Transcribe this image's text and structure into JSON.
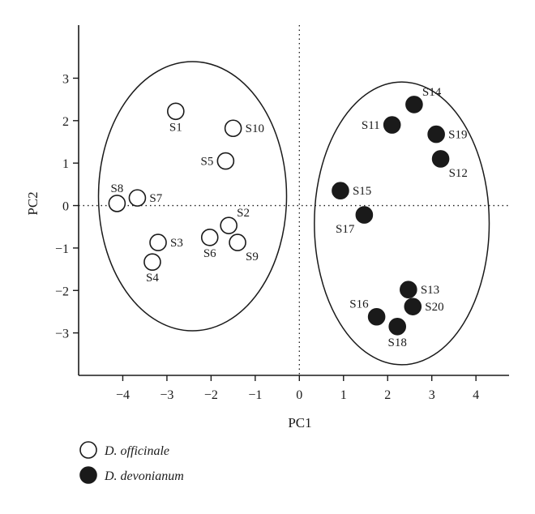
{
  "chart_data": {
    "type": "scatter",
    "xlabel": "PC1",
    "ylabel": "PC2",
    "xlim": [
      -5,
      4.75
    ],
    "ylim": [
      -4,
      4.25
    ],
    "xticks": [
      -4,
      -3,
      -2,
      -1,
      0,
      1,
      2,
      3,
      4
    ],
    "xtick_labels": [
      "−4",
      "−3",
      "−2",
      "−1",
      "0",
      "1",
      "2",
      "3",
      "4"
    ],
    "yticks": [
      -3,
      -2,
      -1,
      0,
      1,
      2,
      3
    ],
    "ytick_labels": [
      "−3",
      "−2",
      "−1",
      "0",
      "1",
      "2",
      "3"
    ],
    "grid": false,
    "zero_lines": "dotted",
    "legend_position": "bottom-left",
    "series": [
      {
        "name": "D. officinale",
        "marker": "open-circle",
        "color": "#1a1a1a",
        "points": [
          {
            "label": "S1",
            "x": -2.8,
            "y": 2.22,
            "label_pos": "below"
          },
          {
            "label": "S2",
            "x": -1.6,
            "y": -0.47,
            "label_pos": "above-right"
          },
          {
            "label": "S3",
            "x": -3.2,
            "y": -0.87,
            "label_pos": "right"
          },
          {
            "label": "S4",
            "x": -3.33,
            "y": -1.33,
            "label_pos": "below"
          },
          {
            "label": "S5",
            "x": -1.67,
            "y": 1.05,
            "label_pos": "left"
          },
          {
            "label": "S6",
            "x": -2.03,
            "y": -0.75,
            "label_pos": "below"
          },
          {
            "label": "S7",
            "x": -3.67,
            "y": 0.18,
            "label_pos": "right"
          },
          {
            "label": "S8",
            "x": -4.13,
            "y": 0.05,
            "label_pos": "above"
          },
          {
            "label": "S9",
            "x": -1.4,
            "y": -0.87,
            "label_pos": "below-right"
          },
          {
            "label": "S10",
            "x": -1.5,
            "y": 1.82,
            "label_pos": "right"
          }
        ]
      },
      {
        "name": "D. devonianum",
        "marker": "filled-circle",
        "color": "#1a1a1a",
        "points": [
          {
            "label": "S11",
            "x": 2.1,
            "y": 1.9,
            "label_pos": "left"
          },
          {
            "label": "S12",
            "x": 3.2,
            "y": 1.1,
            "label_pos": "below-right"
          },
          {
            "label": "S13",
            "x": 2.47,
            "y": -1.98,
            "label_pos": "right"
          },
          {
            "label": "S14",
            "x": 2.6,
            "y": 2.38,
            "label_pos": "above-right"
          },
          {
            "label": "S15",
            "x": 0.93,
            "y": 0.35,
            "label_pos": "right"
          },
          {
            "label": "S16",
            "x": 1.75,
            "y": -2.62,
            "label_pos": "above-left"
          },
          {
            "label": "S17",
            "x": 1.47,
            "y": -0.22,
            "label_pos": "below-left"
          },
          {
            "label": "S18",
            "x": 2.22,
            "y": -2.85,
            "label_pos": "below"
          },
          {
            "label": "S19",
            "x": 3.1,
            "y": 1.68,
            "label_pos": "right"
          },
          {
            "label": "S20",
            "x": 2.57,
            "y": -2.38,
            "label_pos": "right"
          }
        ]
      }
    ],
    "ellipses": [
      {
        "group": "D. officinale",
        "cx": -2.42,
        "cy": 0.22,
        "rx": 2.13,
        "ry": 3.17
      },
      {
        "group": "D. devonianum",
        "cx": 2.32,
        "cy": -0.42,
        "rx": 1.98,
        "ry": 3.33
      }
    ]
  }
}
